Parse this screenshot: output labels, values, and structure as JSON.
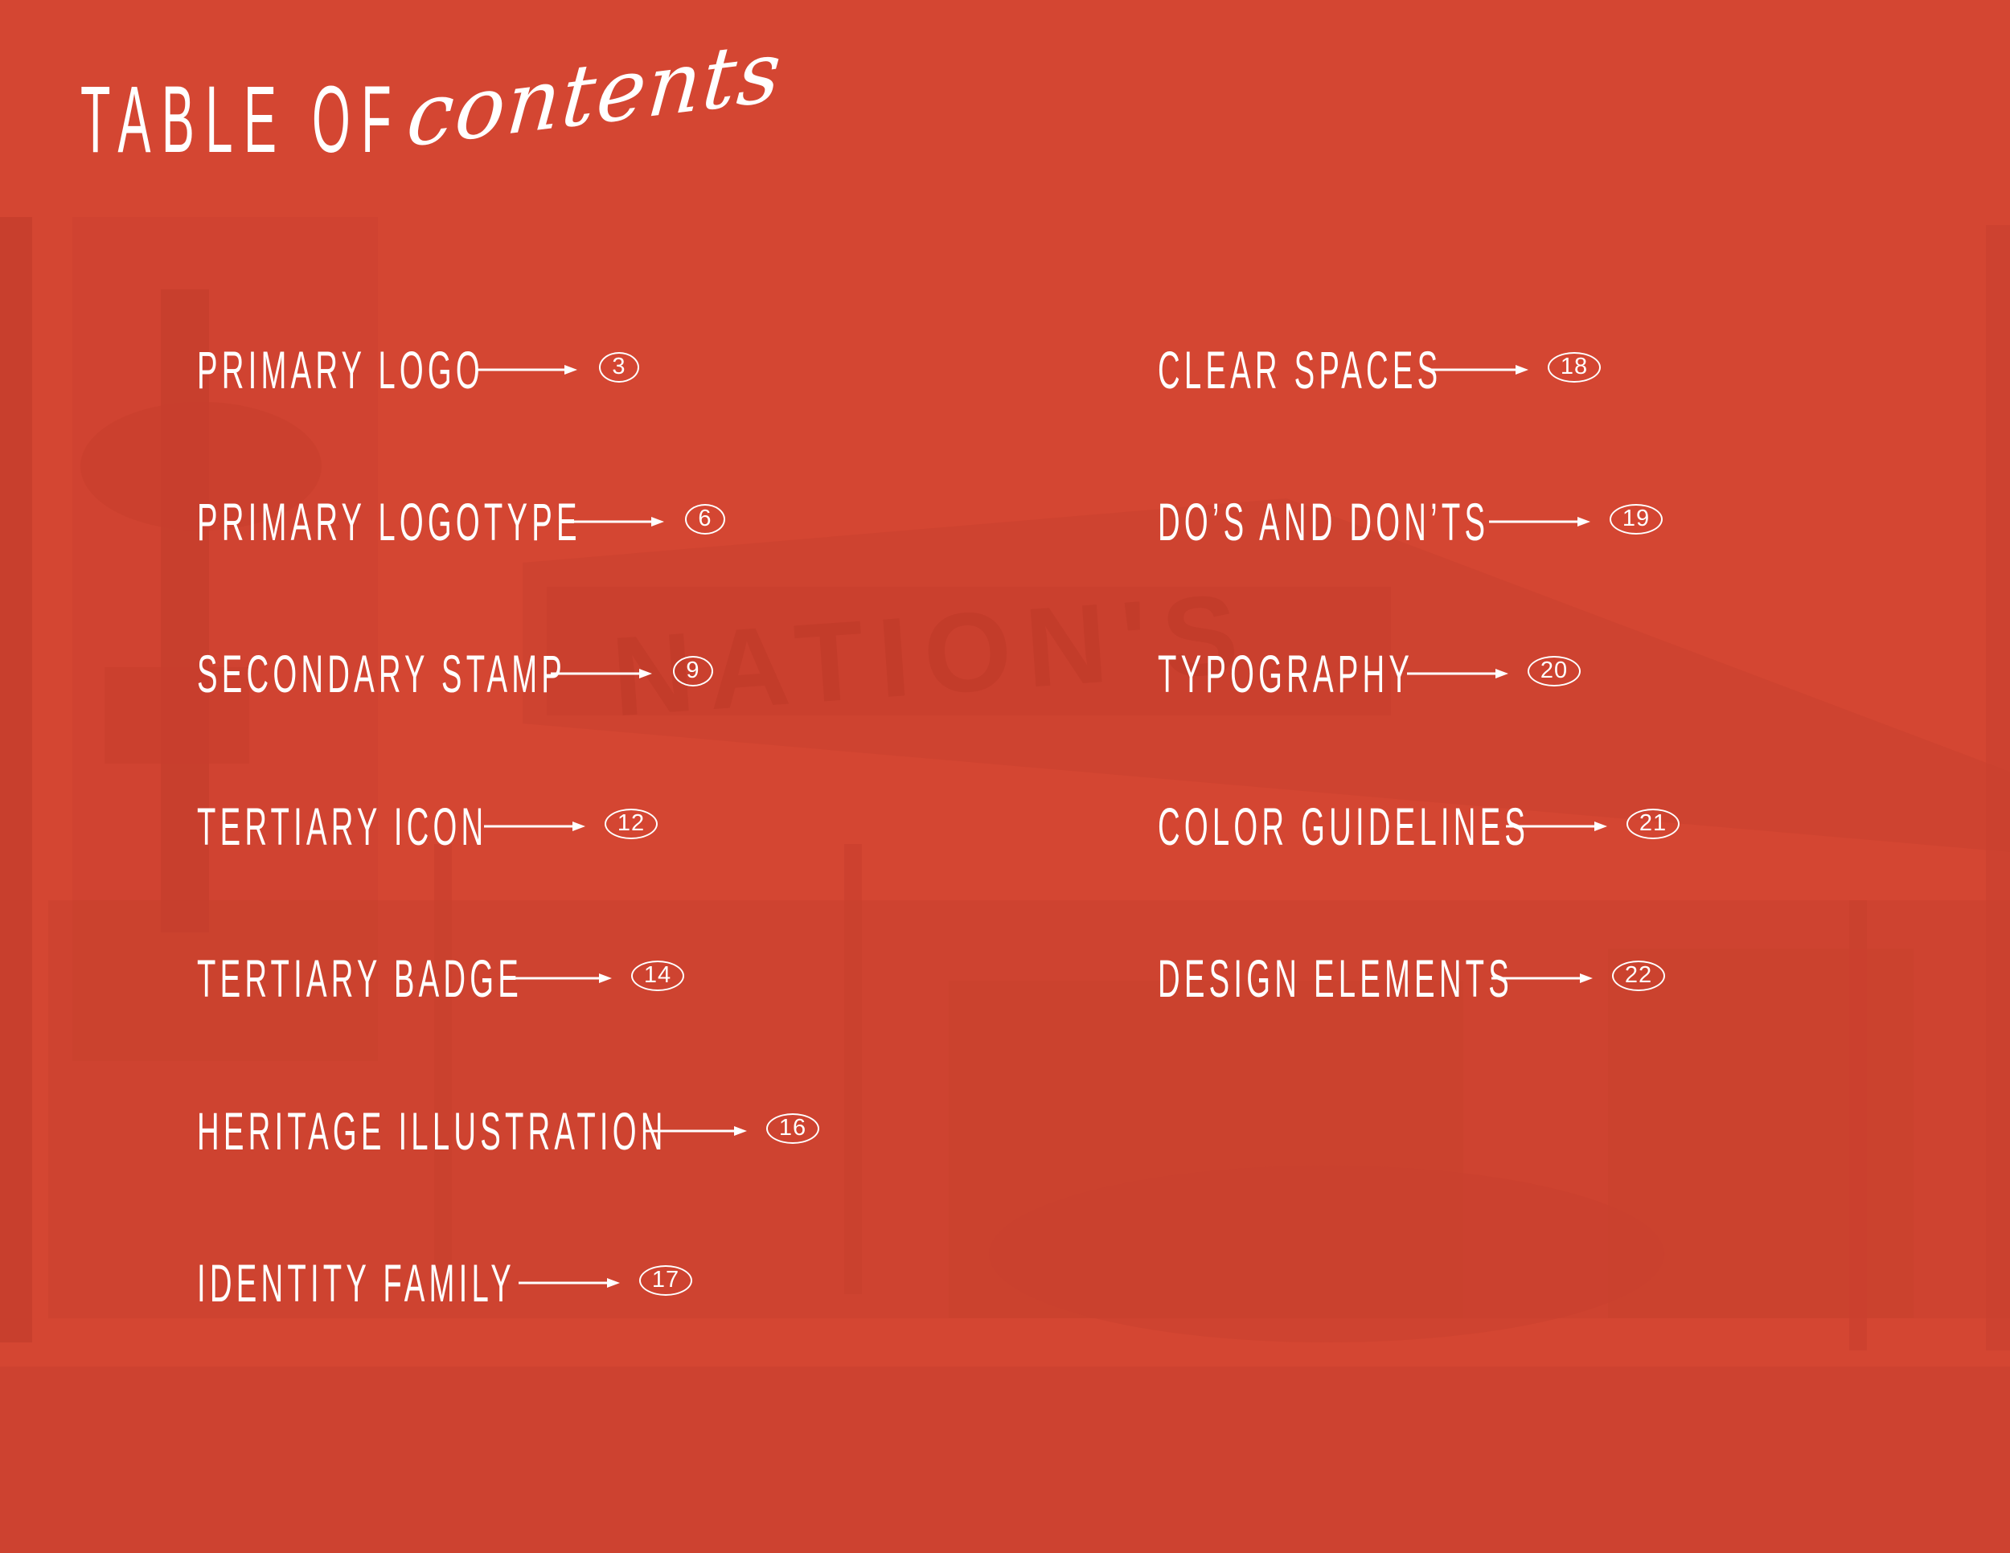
{
  "page": {
    "title_caps": "TABLE OF",
    "title_script": "contents",
    "background_color": "#d44632",
    "illustration_color": "#c43e2d",
    "text_color": "#ffffff",
    "illustration_sign_text": "NATION'S"
  },
  "toc": {
    "left_column": [
      {
        "label": "PRIMARY LOGO",
        "page": "3"
      },
      {
        "label": "PRIMARY LOGOTYPE",
        "page": "6"
      },
      {
        "label": "SECONDARY STAMP",
        "page": "9"
      },
      {
        "label": "TERTIARY ICON",
        "page": "12"
      },
      {
        "label": "TERTIARY BADGE",
        "page": "14"
      },
      {
        "label": "HERITAGE ILLUSTRATION",
        "page": "16"
      },
      {
        "label": "IDENTITY FAMILY",
        "page": "17"
      }
    ],
    "right_column": [
      {
        "label": "CLEAR SPACES",
        "page": "18"
      },
      {
        "label": "DO’S AND DON’TS",
        "page": "19"
      },
      {
        "label": "TYPOGRAPHY",
        "page": "20"
      },
      {
        "label": "COLOR GUIDELINES",
        "page": "21"
      },
      {
        "label": "DESIGN ELEMENTS",
        "page": "22"
      }
    ]
  },
  "icons": {
    "entry_arrow": "right-arrow-icon",
    "page_badge": "page-number-oval"
  }
}
